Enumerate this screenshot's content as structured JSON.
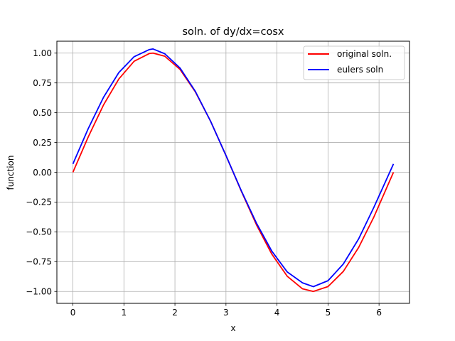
{
  "chart_data": {
    "type": "line",
    "title": "soln. of dy/dx=cosx",
    "xlabel": "x",
    "ylabel": "function",
    "xlim": [
      -0.314,
      6.597
    ],
    "ylim": [
      -1.1,
      1.1
    ],
    "xticks": [
      0,
      1,
      2,
      3,
      4,
      5,
      6
    ],
    "xtick_labels": [
      "0",
      "1",
      "2",
      "3",
      "4",
      "5",
      "6"
    ],
    "yticks": [
      1.0,
      0.75,
      0.5,
      0.25,
      0.0,
      -0.25,
      -0.5,
      -0.75,
      -1.0
    ],
    "ytick_labels": [
      "1.00",
      "0.75",
      "0.50",
      "0.25",
      "0.00",
      "−0.25",
      "−0.50",
      "−0.75",
      "−1.00"
    ],
    "grid": true,
    "legend_position": "top-right",
    "series": [
      {
        "name": "original soln.",
        "color": "#ff0000",
        "x": [
          0,
          0.3,
          0.6,
          0.9,
          1.2,
          1.5,
          1.571,
          1.8,
          2.1,
          2.4,
          2.7,
          3.0,
          3.3,
          3.6,
          3.9,
          4.2,
          4.5,
          4.712,
          5.0,
          5.3,
          5.6,
          5.9,
          6.283
        ],
        "y": [
          0.0,
          0.296,
          0.565,
          0.783,
          0.932,
          0.997,
          1.0,
          0.974,
          0.863,
          0.675,
          0.427,
          0.141,
          -0.158,
          -0.443,
          -0.688,
          -0.872,
          -0.978,
          -1.0,
          -0.959,
          -0.832,
          -0.631,
          -0.374,
          0.0
        ]
      },
      {
        "name": "eulers soln",
        "color": "#0000ff",
        "x": [
          0,
          0.3,
          0.6,
          0.9,
          1.2,
          1.5,
          1.571,
          1.8,
          2.1,
          2.4,
          2.7,
          3.0,
          3.3,
          3.6,
          3.9,
          4.2,
          4.5,
          4.712,
          5.0,
          5.3,
          5.6,
          5.9,
          6.283
        ],
        "y": [
          0.07,
          0.366,
          0.629,
          0.837,
          0.97,
          1.03,
          1.035,
          0.995,
          0.875,
          0.679,
          0.427,
          0.141,
          -0.154,
          -0.429,
          -0.663,
          -0.836,
          -0.928,
          -0.96,
          -0.91,
          -0.77,
          -0.559,
          -0.293,
          0.07
        ]
      }
    ]
  }
}
